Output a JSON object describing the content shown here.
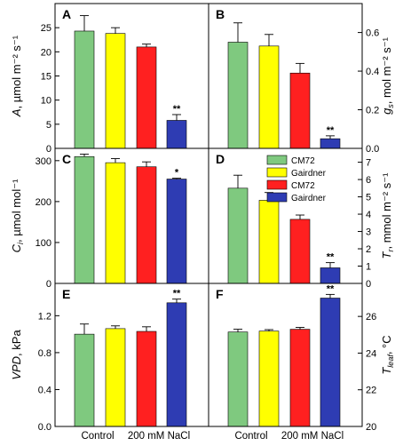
{
  "chart_data": {
    "type": "bar",
    "bar_categories": [
      "CM72 Control",
      "Gairdner Control",
      "CM72 200 mM NaCl",
      "Gairdner 200 mM NaCl"
    ],
    "colors": [
      "#7fc97f",
      "#ffff00",
      "#ff2020",
      "#2e3cb3"
    ],
    "legend": {
      "placement": "inside panel D, top-right",
      "entries": [
        "CM72",
        "Gairdner",
        "CM72",
        "Gairdner"
      ]
    },
    "x_labels": [
      "Control",
      "200 mM NaCl"
    ],
    "panels": [
      {
        "id": "A",
        "letter": "A",
        "yaxis": "left",
        "ylabel_main": "A",
        "ylabel_rest": ", µmol m⁻² s⁻¹",
        "ylim": [
          0,
          30
        ],
        "ticks": [
          0,
          5,
          10,
          15,
          20,
          25
        ],
        "tick_labels": [
          "0",
          "5",
          "10",
          "15",
          "20",
          "25"
        ],
        "values": [
          24.3,
          23.8,
          21.0,
          5.8
        ],
        "errors": [
          3.2,
          1.2,
          0.6,
          1.2
        ],
        "sig": [
          "",
          "",
          "",
          "**"
        ]
      },
      {
        "id": "B",
        "letter": "B",
        "yaxis": "right",
        "ylabel_main": "g",
        "ylabel_sub": "s",
        "ylabel_rest": ", mol m⁻² s⁻¹",
        "ylim": [
          0,
          0.75
        ],
        "ticks": [
          0,
          0.2,
          0.4,
          0.6
        ],
        "tick_labels": [
          "0.0",
          "0.2",
          "0.4",
          "0.6"
        ],
        "values": [
          0.55,
          0.53,
          0.39,
          0.05
        ],
        "errors": [
          0.1,
          0.06,
          0.05,
          0.015
        ],
        "sig": [
          "",
          "",
          "",
          "**"
        ]
      },
      {
        "id": "C",
        "letter": "C",
        "yaxis": "left",
        "ylabel_main": "C",
        "ylabel_sub": "i",
        "ylabel_rest": ", µmol mol⁻¹",
        "ylim": [
          0,
          330
        ],
        "ticks": [
          0,
          100,
          200,
          300
        ],
        "tick_labels": [
          "0",
          "100",
          "200",
          "300"
        ],
        "values": [
          310,
          295,
          285,
          255
        ],
        "errors": [
          6,
          10,
          12,
          2
        ],
        "sig": [
          "",
          "",
          "",
          "*"
        ]
      },
      {
        "id": "D",
        "letter": "D",
        "yaxis": "right",
        "ylabel_main": "T",
        "ylabel_sub": "r",
        "ylabel_rest": ", mmol m⁻² s⁻¹",
        "ylim": [
          0,
          7.8
        ],
        "ticks": [
          0,
          1,
          2,
          3,
          4,
          5,
          6,
          7
        ],
        "tick_labels": [
          "0",
          "1",
          "2",
          "3",
          "4",
          "5",
          "6",
          "7"
        ],
        "values": [
          5.5,
          4.8,
          3.7,
          0.9
        ],
        "errors": [
          0.75,
          0.45,
          0.25,
          0.3
        ],
        "sig": [
          "",
          "",
          "",
          "**"
        ]
      },
      {
        "id": "E",
        "letter": "E",
        "yaxis": "left",
        "ylabel_main": "VPD",
        "ylabel_rest": ", kPa",
        "ylim": [
          0,
          1.55
        ],
        "ticks": [
          0,
          0.4,
          0.8,
          1.2
        ],
        "tick_labels": [
          "0.0",
          "0.4",
          "0.8",
          "1.2"
        ],
        "values": [
          1.0,
          1.06,
          1.03,
          1.34
        ],
        "errors": [
          0.11,
          0.03,
          0.05,
          0.04
        ],
        "sig": [
          "",
          "",
          "",
          "**"
        ]
      },
      {
        "id": "F",
        "letter": "F",
        "yaxis": "right",
        "ylabel_main": "T",
        "ylabel_sub": "leaf",
        "ylabel_rest": ", °C",
        "ylim": [
          20,
          27.8
        ],
        "ticks": [
          20,
          22,
          24,
          26
        ],
        "tick_labels": [
          "20",
          "22",
          "24",
          "26"
        ],
        "values": [
          25.15,
          25.2,
          25.3,
          27.0
        ],
        "errors": [
          0.15,
          0.08,
          0.1,
          0.2
        ],
        "sig": [
          "",
          "",
          "",
          "**"
        ]
      }
    ]
  }
}
